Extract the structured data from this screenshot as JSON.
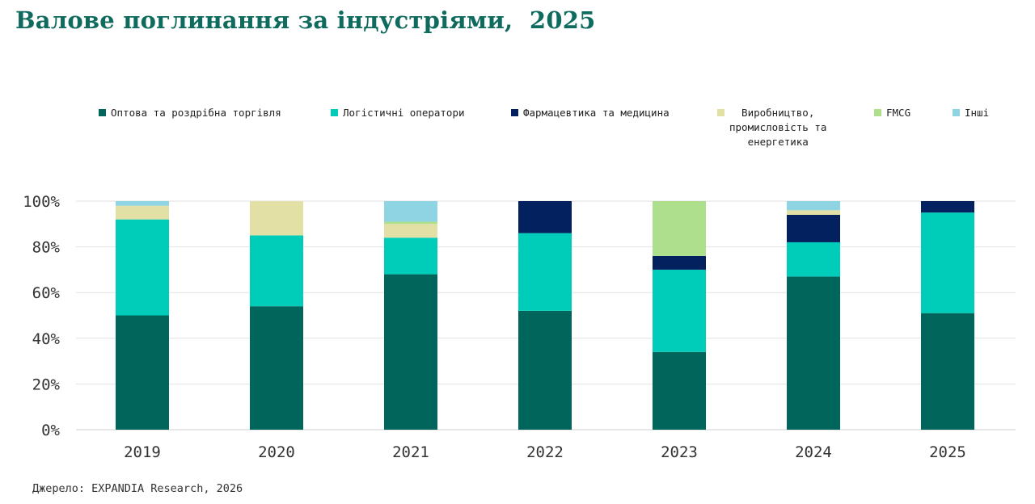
{
  "title": "Валове поглинання за індустріями,  2025",
  "source": "Джерело: EXPANDIA Research, 2026",
  "chart_data": {
    "type": "bar",
    "stacked": true,
    "categories": [
      "2019",
      "2020",
      "2021",
      "2022",
      "2023",
      "2024",
      "2025"
    ],
    "ylim": [
      0,
      100
    ],
    "yticks": [
      0,
      20,
      40,
      60,
      80,
      100
    ],
    "ytick_labels": [
      "0%",
      "20%",
      "40%",
      "60%",
      "80%",
      "100%"
    ],
    "grid": true,
    "legend_position": "top",
    "series": [
      {
        "name": "Оптова та роздрібна торгівля",
        "color": "#00665c",
        "values": [
          50,
          54,
          68,
          52,
          34,
          67,
          51
        ]
      },
      {
        "name": "Логістичні оператори",
        "color": "#00cdb9",
        "values": [
          42,
          31,
          16,
          34,
          36,
          15,
          44
        ]
      },
      {
        "name": "Фармацевтика та медицина",
        "color": "#03215e",
        "values": [
          0,
          0,
          0,
          14,
          6,
          12,
          5
        ]
      },
      {
        "name": "Виробництво,\nпромисловість та\nенергетика",
        "color": "#e3e0a6",
        "values": [
          6,
          15,
          6,
          0,
          0,
          2,
          0
        ]
      },
      {
        "name": "FMCG",
        "color": "#addf8d",
        "values": [
          0,
          0,
          1,
          0,
          24,
          0,
          0
        ]
      },
      {
        "name": "Інші",
        "color": "#8fd4e2",
        "values": [
          2,
          0,
          9,
          0,
          0,
          4,
          0
        ]
      }
    ]
  }
}
